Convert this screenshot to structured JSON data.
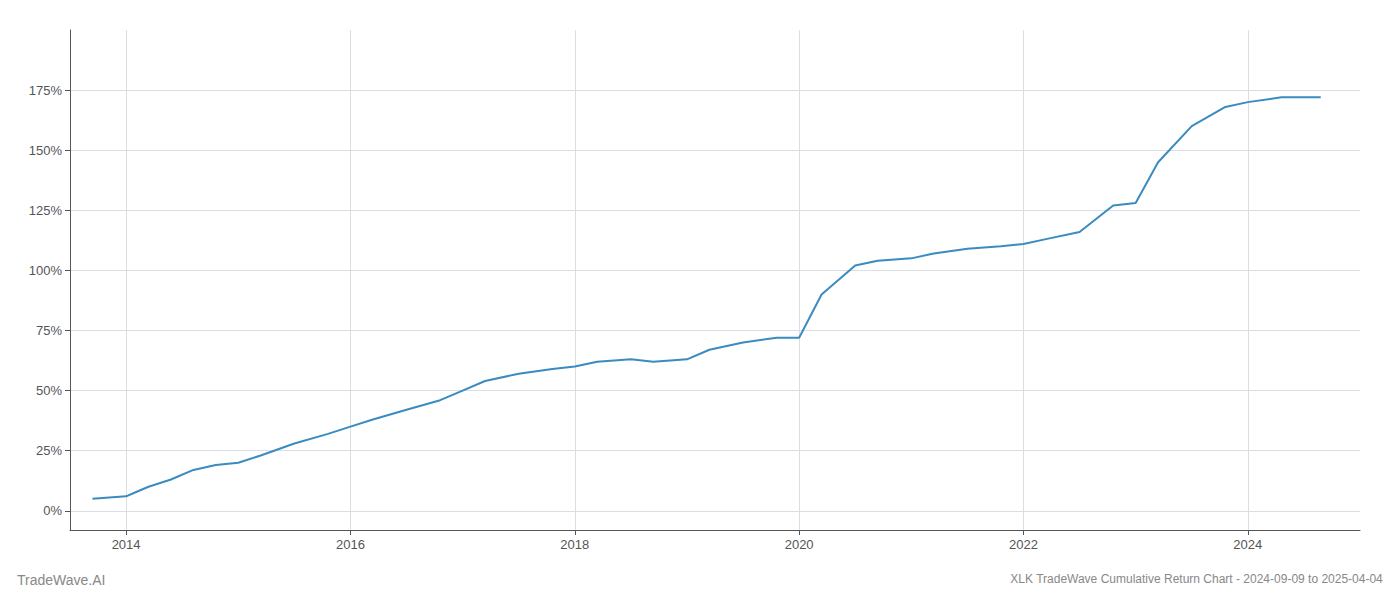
{
  "chart_data": {
    "type": "line",
    "subtitle": "XLK TradeWave Cumulative Return Chart - 2024-09-09 to 2025-04-04",
    "annotations": [
      "TradeWave.AI"
    ],
    "x": [
      2013.7,
      2014.0,
      2014.1,
      2014.2,
      2014.4,
      2014.6,
      2014.8,
      2015.0,
      2015.2,
      2015.5,
      2015.8,
      2016.0,
      2016.2,
      2016.5,
      2016.8,
      2017.0,
      2017.2,
      2017.5,
      2017.8,
      2018.0,
      2018.2,
      2018.5,
      2018.7,
      2019.0,
      2019.2,
      2019.5,
      2019.8,
      2020.0,
      2020.2,
      2020.5,
      2020.7,
      2021.0,
      2021.2,
      2021.5,
      2021.8,
      2022.0,
      2022.2,
      2022.5,
      2022.8,
      2023.0,
      2023.2,
      2023.5,
      2023.8,
      2024.0,
      2024.3,
      2024.65
    ],
    "values": [
      5,
      6,
      8,
      10,
      13,
      17,
      19,
      20,
      23,
      28,
      32,
      35,
      38,
      42,
      46,
      50,
      54,
      57,
      59,
      60,
      62,
      63,
      62,
      63,
      67,
      70,
      72,
      72,
      90,
      102,
      104,
      105,
      107,
      109,
      110,
      111,
      113,
      116,
      127,
      128,
      145,
      160,
      168,
      170,
      172,
      172
    ],
    "color": "#3a8bbf",
    "xlim": [
      2013.5,
      2025.0
    ],
    "xticks": [
      2014,
      2016,
      2018,
      2020,
      2022,
      2024
    ],
    "ylim": [
      -8,
      200
    ],
    "yticks": [
      {
        "value": 0,
        "label": "0%"
      },
      {
        "value": 25,
        "label": "25%"
      },
      {
        "value": 50,
        "label": "50%"
      },
      {
        "value": 75,
        "label": "75%"
      },
      {
        "value": 100,
        "label": "100%"
      },
      {
        "value": 125,
        "label": "125%"
      },
      {
        "value": 150,
        "label": "150%"
      },
      {
        "value": 175,
        "label": "175%"
      }
    ],
    "grid": true
  }
}
